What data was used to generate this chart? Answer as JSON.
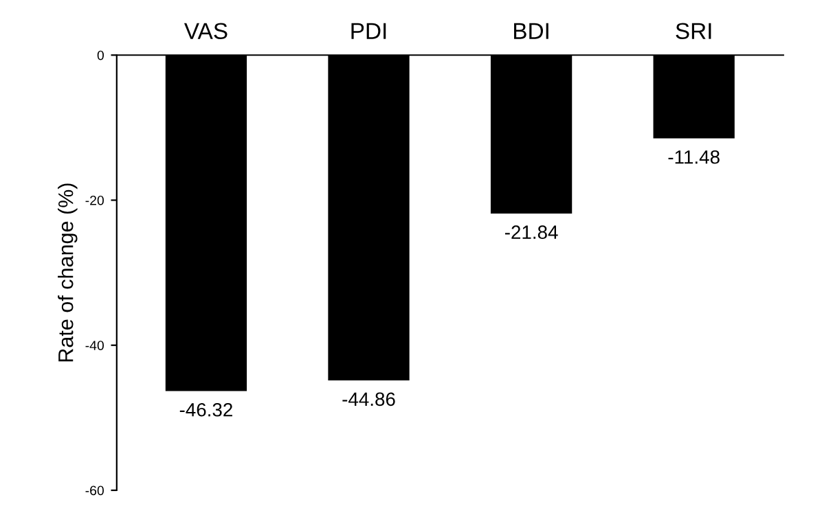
{
  "chart_data": {
    "type": "bar",
    "ylabel": "Rate of change (%)",
    "categories": [
      "VAS",
      "PDI",
      "BDI",
      "SRI"
    ],
    "values": [
      -46.32,
      -44.86,
      -21.84,
      -11.48
    ],
    "color": "#000000",
    "ylim": [
      -60,
      0
    ],
    "yticks": [
      0,
      -20,
      -40,
      -60
    ],
    "data_labels": true,
    "grid": false,
    "legend": false
  }
}
